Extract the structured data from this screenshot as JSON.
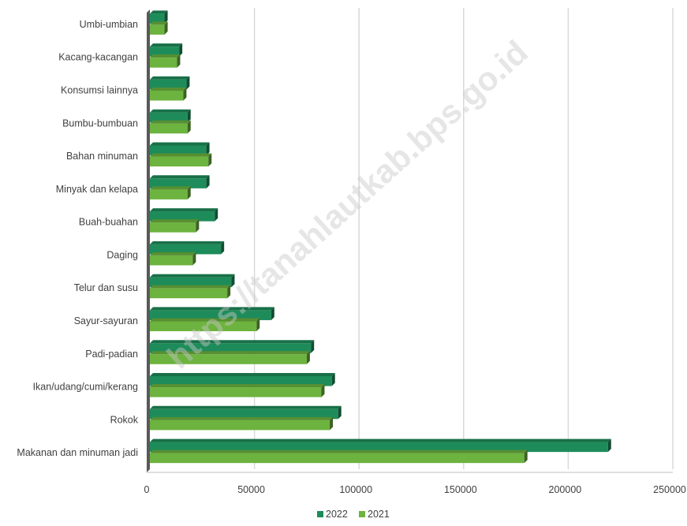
{
  "watermark": "https://tanahlautkab.bps.go.id",
  "chart_data": {
    "type": "bar",
    "orientation": "horizontal",
    "title": "",
    "xlabel": "",
    "ylabel": "",
    "xlim": [
      0,
      250000
    ],
    "x_ticks": [
      0,
      50000,
      100000,
      150000,
      200000,
      250000
    ],
    "x_tick_labels": [
      "0",
      "50000",
      "100000",
      "150000",
      "200000",
      "250000"
    ],
    "grid": true,
    "legend_position": "bottom",
    "categories": [
      "Makanan dan minuman jadi",
      "Rokok",
      "Ikan/udang/cumi/kerang",
      "Padi-padian",
      "Sayur-sayuran",
      "Telur dan susu",
      "Daging",
      "Buah-buahan",
      "Minyak dan kelapa",
      "Bahan minuman",
      "Bumbu-bumbuan",
      "Konsumsi lainnya",
      "Kacang-kacangan",
      "Umbi-umbian"
    ],
    "series": [
      {
        "name": "2022",
        "color": "#1e8c5a",
        "values": [
          219000,
          90000,
          87000,
          77000,
          58000,
          39000,
          34000,
          31000,
          27000,
          27000,
          18000,
          17500,
          14000,
          7000
        ]
      },
      {
        "name": "2021",
        "color": "#6db33f",
        "values": [
          179000,
          86000,
          82000,
          75000,
          51000,
          37000,
          20500,
          22000,
          18000,
          28000,
          18000,
          16000,
          13000,
          7000
        ]
      }
    ]
  }
}
